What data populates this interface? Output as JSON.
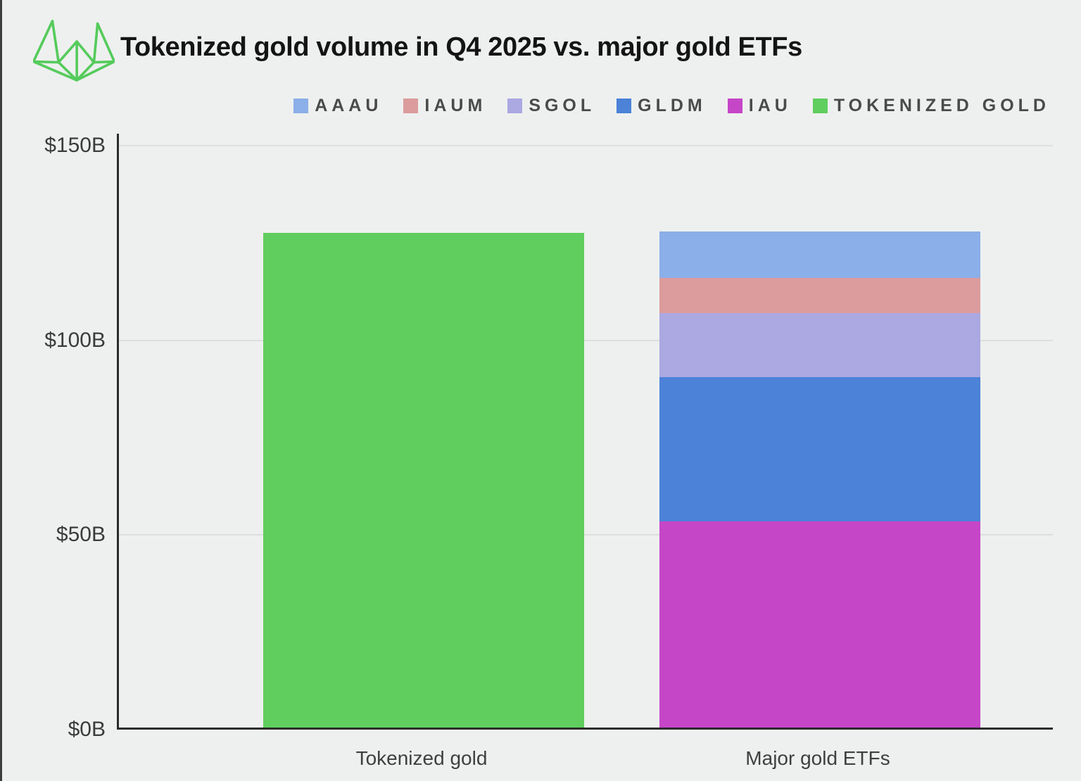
{
  "header": {
    "title": "Tokenized gold volume in Q4 2025 vs. major gold ETFs",
    "logo_icon": "green-wireframe-crown-icon"
  },
  "colors": {
    "background": "#eef0ef",
    "axis": "#2b2b2b",
    "gridline": "#dcdfdc",
    "title_text": "#141414",
    "tick_text": "#3b3b3b",
    "legend_text": "#4a4a4a",
    "frame_edge": "#3d3d3d",
    "logo_green": "#55cb5c"
  },
  "chart_data": {
    "type": "bar",
    "stacked": true,
    "title": "Tokenized gold volume in Q4 2025 vs. major gold ETFs",
    "unit": "USD billions",
    "ylim": [
      0,
      150
    ],
    "grid": "horizontal",
    "legend_position": "top-right",
    "yticks": [
      {
        "label": "$150B",
        "value": 150
      },
      {
        "label": "$100B",
        "value": 100
      },
      {
        "label": "$50B",
        "value": 50
      },
      {
        "label": "$0B",
        "value": 0
      }
    ],
    "categories": [
      "Tokenized gold",
      "Major gold ETFs"
    ],
    "legend": [
      {
        "label": "AAAU",
        "color": "#8bafe8"
      },
      {
        "label": "IAUM",
        "color": "#dc9b9d"
      },
      {
        "label": "SGOL",
        "color": "#aba8e2"
      },
      {
        "label": "GLDM",
        "color": "#4c82d8"
      },
      {
        "label": "IAU",
        "color": "#c646c8"
      },
      {
        "label": "TOKENIZED GOLD",
        "color": "#5fce5e"
      }
    ],
    "bars": [
      {
        "category": "Tokenized gold",
        "total": 127,
        "segments": [
          {
            "name": "TOKENIZED GOLD",
            "value": 127,
            "color": "#5fce5e"
          }
        ]
      },
      {
        "category": "Major gold ETFs",
        "total": 127.5,
        "segments": [
          {
            "name": "IAU",
            "value": 53,
            "color": "#c646c8"
          },
          {
            "name": "GLDM",
            "value": 37,
            "color": "#4c82d8"
          },
          {
            "name": "SGOL",
            "value": 16.5,
            "color": "#aba8e2"
          },
          {
            "name": "IAUM",
            "value": 9,
            "color": "#dc9b9d"
          },
          {
            "name": "AAAU",
            "value": 12,
            "color": "#8bafe8"
          }
        ]
      }
    ]
  }
}
